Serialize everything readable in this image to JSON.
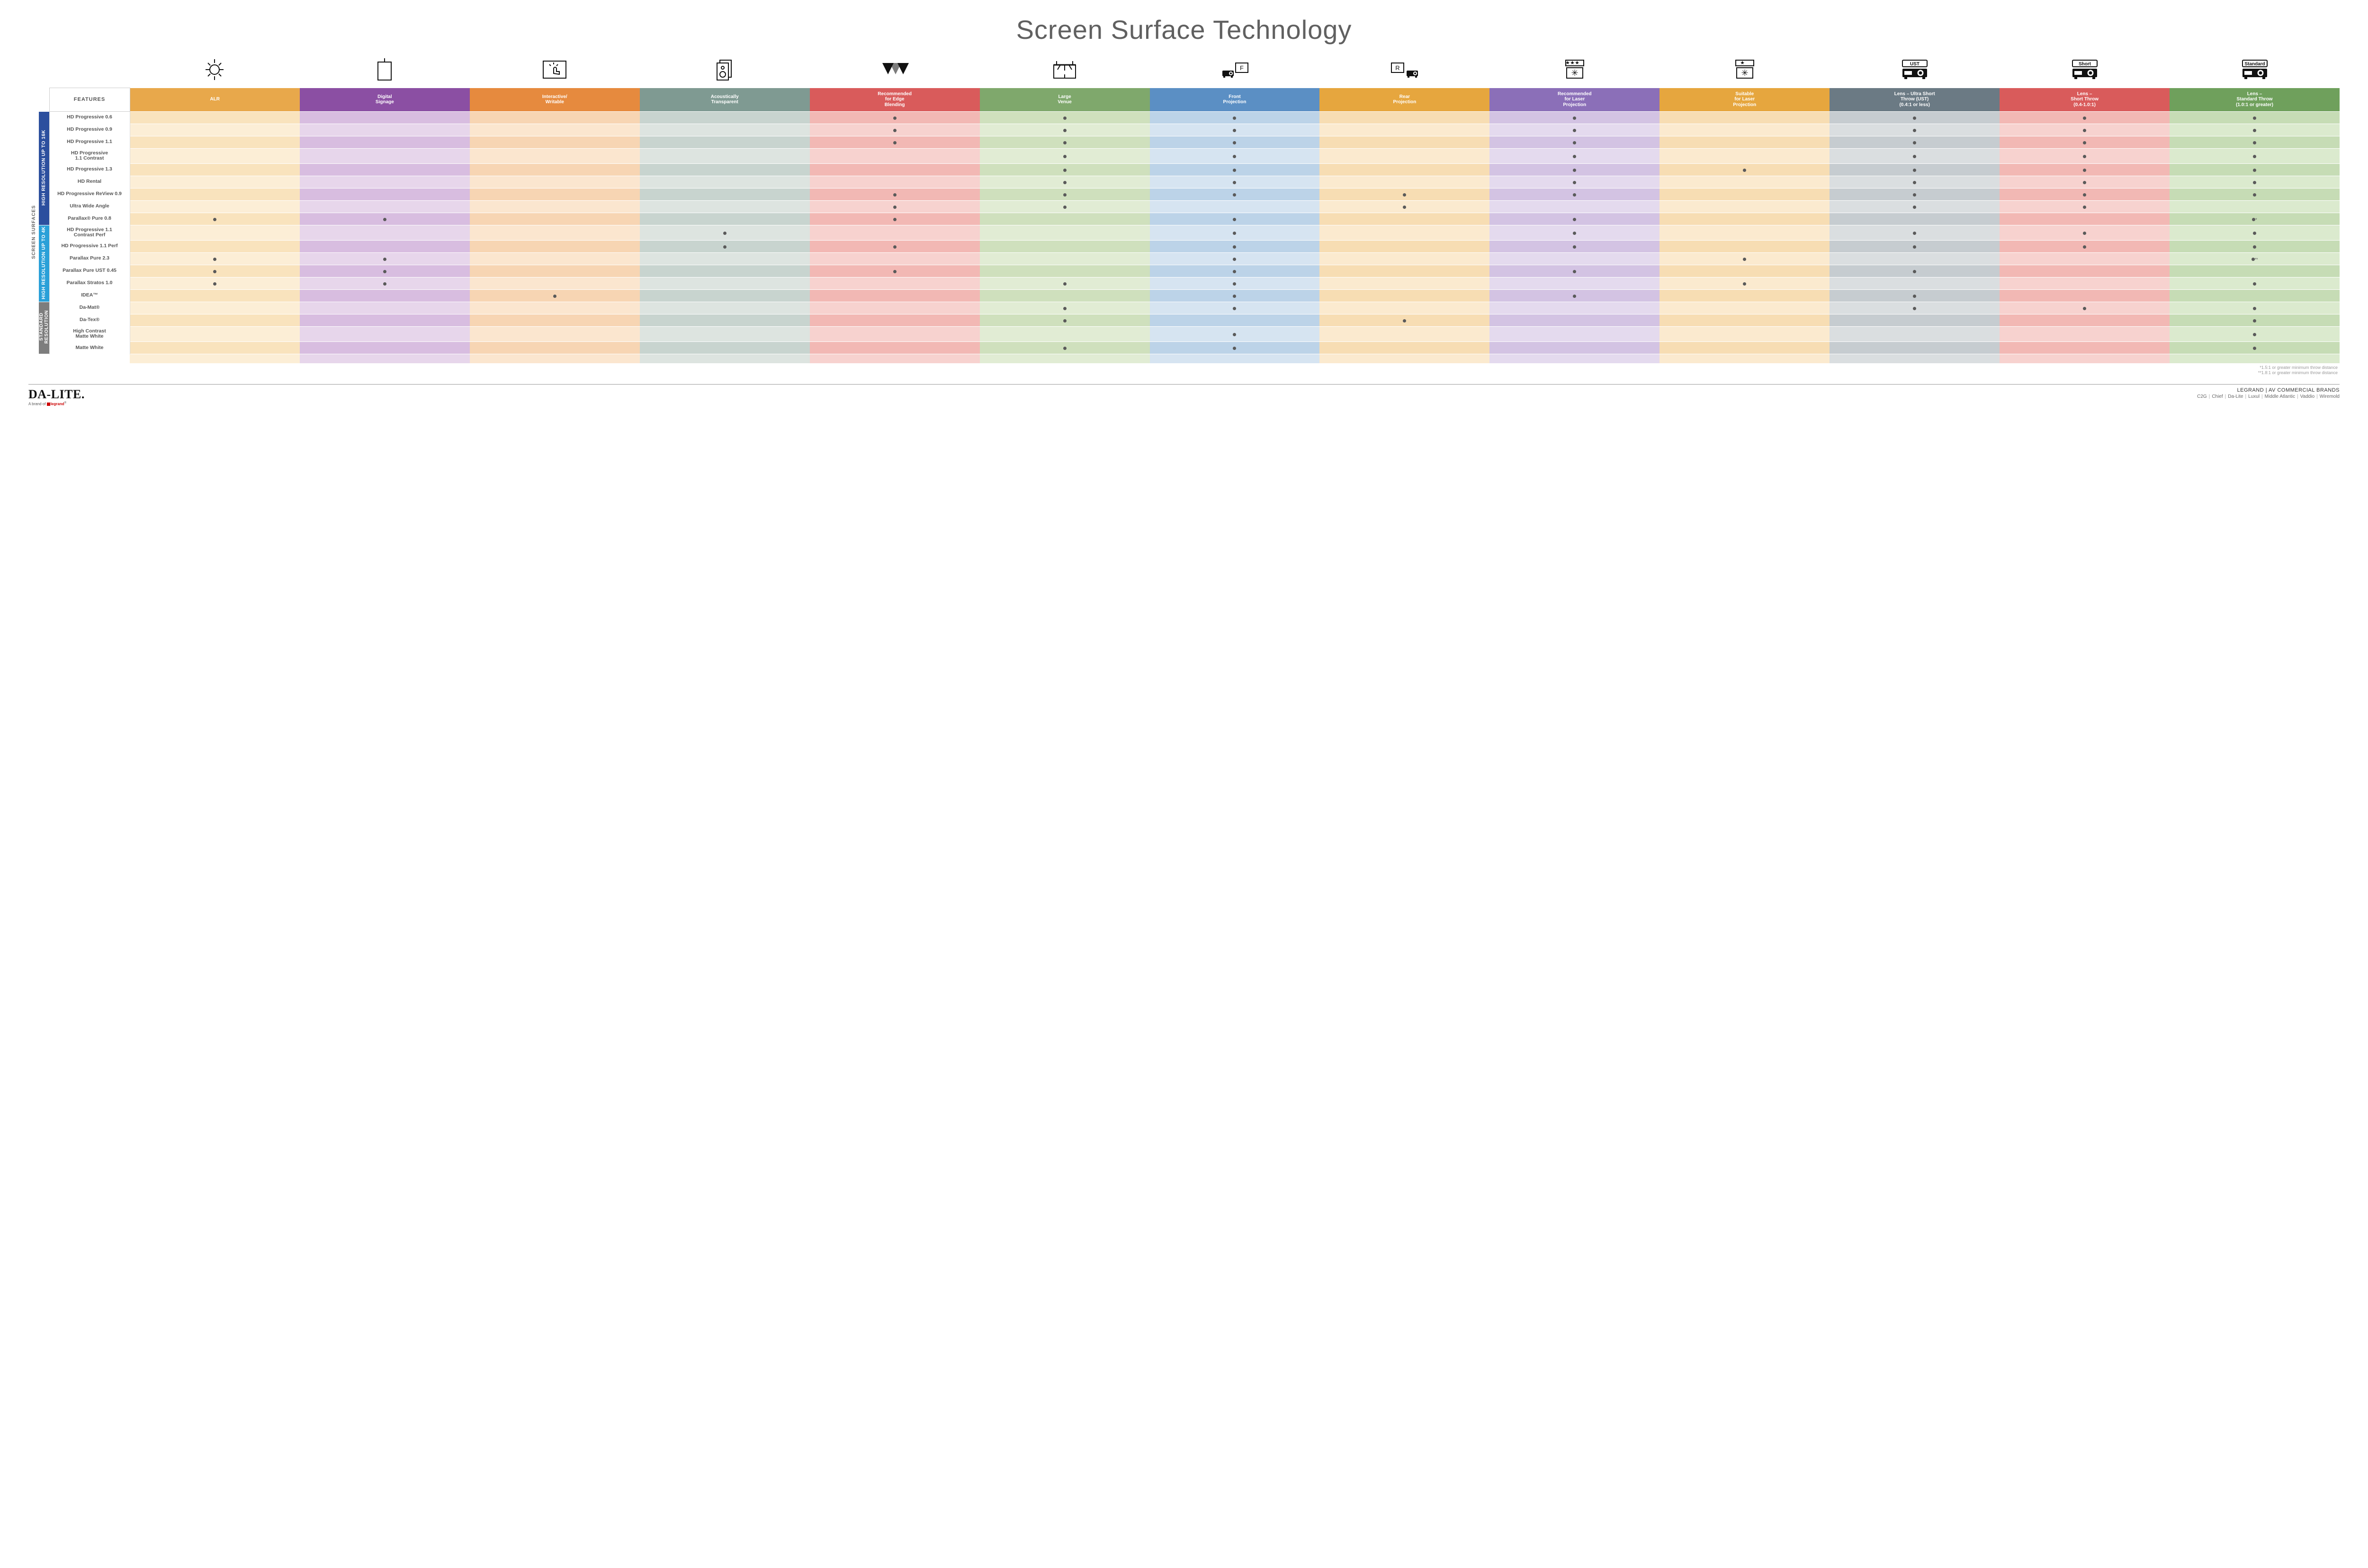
{
  "title": "Screen Surface Technology",
  "features_header": "FEATURES",
  "outer_group_label": "SCREEN SURFACES",
  "colors": {
    "header_bg": [
      "#e8a84b",
      "#8b4fa3",
      "#e68a3e",
      "#7f9a92",
      "#d95b5b",
      "#7fa86c",
      "#5b8fc4",
      "#e6a63e",
      "#8b6fb8",
      "#e6a63e",
      "#6b7a84",
      "#d95b5b",
      "#6fa05c"
    ],
    "tint_even": [
      "#f9e3bd",
      "#d8bde0",
      "#f7d5b3",
      "#c8d4cf",
      "#f2b8b4",
      "#cfe0bd",
      "#bcd3e8",
      "#f7ddb3",
      "#d3c3e3",
      "#f7ddb3",
      "#c6ccd0",
      "#f2b8b4",
      "#c6dcb5"
    ],
    "tint_odd": [
      "#fceed6",
      "#e7d6eb",
      "#fbe6cf",
      "#dde4e0",
      "#f7d2cf",
      "#e1ecd4",
      "#d6e4f1",
      "#fbeacf",
      "#e4daee",
      "#fbeacf",
      "#dadee0",
      "#f7d2cf",
      "#dbeace"
    ],
    "group_bg": [
      "#2c4f9e",
      "#2aa0d8",
      "#7d7d7d"
    ]
  },
  "columns": [
    {
      "label": "ALR",
      "icon": "bulb"
    },
    {
      "label": "Digital\nSignage",
      "icon": "signage"
    },
    {
      "label": "Interactive/\nWritable",
      "icon": "touch"
    },
    {
      "label": "Acoustically\nTransparent",
      "icon": "speaker"
    },
    {
      "label": "Recommended\nfor Edge\nBlending",
      "icon": "edge"
    },
    {
      "label": "Large\nVenue",
      "icon": "venue"
    },
    {
      "label": "Front\nProjection",
      "icon": "front"
    },
    {
      "label": "Rear\nProjection",
      "icon": "rear"
    },
    {
      "label": "Recommended\nfor Laser\nProjection",
      "icon": "laser3"
    },
    {
      "label": "Suitable\nfor Laser\nProjection",
      "icon": "laser1"
    },
    {
      "label": "Lens – Ultra Short\nThrow (UST)\n(0.4:1 or less)",
      "icon": "proj",
      "badge": "UST"
    },
    {
      "label": "Lens –\nShort Throw\n(0.4-1.0:1)",
      "icon": "proj",
      "badge": "Short"
    },
    {
      "label": "Lens –\nStandard Throw\n(1.0:1 or greater)",
      "icon": "proj",
      "badge": "Standard"
    }
  ],
  "groups": [
    {
      "label": "HIGH RESOLUTION UP TO 16K",
      "rows": [
        {
          "name": "HD Progressive 0.6",
          "dots": [
            0,
            0,
            0,
            0,
            1,
            1,
            1,
            0,
            1,
            0,
            1,
            1,
            1
          ]
        },
        {
          "name": "HD Progressive 0.9",
          "dots": [
            0,
            0,
            0,
            0,
            1,
            1,
            1,
            0,
            1,
            0,
            1,
            1,
            1
          ]
        },
        {
          "name": "HD Progressive 1.1",
          "dots": [
            0,
            0,
            0,
            0,
            1,
            1,
            1,
            0,
            1,
            0,
            1,
            1,
            1
          ]
        },
        {
          "name": "HD Progressive\n1.1 Contrast",
          "dots": [
            0,
            0,
            0,
            0,
            0,
            1,
            1,
            0,
            1,
            0,
            1,
            1,
            1
          ]
        },
        {
          "name": "HD Progressive 1.3",
          "dots": [
            0,
            0,
            0,
            0,
            0,
            1,
            1,
            0,
            1,
            1,
            1,
            1,
            1
          ]
        },
        {
          "name": "HD Rental",
          "dots": [
            0,
            0,
            0,
            0,
            0,
            1,
            1,
            0,
            1,
            0,
            1,
            1,
            1
          ]
        },
        {
          "name": "HD Progressive ReView 0.9",
          "dots": [
            0,
            0,
            0,
            0,
            1,
            1,
            1,
            1,
            1,
            0,
            1,
            1,
            1
          ]
        },
        {
          "name": "Ultra Wide Angle",
          "dots": [
            0,
            0,
            0,
            0,
            1,
            1,
            0,
            1,
            0,
            0,
            1,
            1,
            0
          ]
        },
        {
          "name": "Parallax® Pure 0.8",
          "dots": [
            1,
            1,
            0,
            0,
            1,
            0,
            1,
            0,
            1,
            0,
            0,
            0,
            "*"
          ]
        }
      ]
    },
    {
      "label": "HIGH RESOLUTION UP TO 4K",
      "rows": [
        {
          "name": "HD Progressive 1.1\nContrast Perf",
          "dots": [
            0,
            0,
            0,
            1,
            0,
            0,
            1,
            0,
            1,
            0,
            1,
            1,
            1
          ]
        },
        {
          "name": "HD Progressive 1.1 Perf",
          "dots": [
            0,
            0,
            0,
            1,
            1,
            0,
            1,
            0,
            1,
            0,
            1,
            1,
            1
          ]
        },
        {
          "name": "Parallax Pure 2.3",
          "dots": [
            1,
            1,
            0,
            0,
            0,
            0,
            1,
            0,
            0,
            1,
            0,
            0,
            "**"
          ]
        },
        {
          "name": "Parallax Pure UST 0.45",
          "dots": [
            1,
            1,
            0,
            0,
            1,
            0,
            1,
            0,
            1,
            0,
            1,
            0,
            0
          ]
        },
        {
          "name": "Parallax Stratos 1.0",
          "dots": [
            1,
            1,
            0,
            0,
            0,
            1,
            1,
            0,
            0,
            1,
            0,
            0,
            1
          ]
        },
        {
          "name": "IDEA™",
          "dots": [
            0,
            0,
            1,
            0,
            0,
            0,
            1,
            0,
            1,
            0,
            1,
            0,
            0
          ]
        }
      ]
    },
    {
      "label": "STANDARD\nRESOLUTION",
      "rows": [
        {
          "name": "Da-Mat®",
          "dots": [
            0,
            0,
            0,
            0,
            0,
            1,
            1,
            0,
            0,
            0,
            1,
            1,
            1
          ]
        },
        {
          "name": "Da-Tex®",
          "dots": [
            0,
            0,
            0,
            0,
            0,
            1,
            0,
            1,
            0,
            0,
            0,
            0,
            1
          ]
        },
        {
          "name": "High Contrast\nMatte White",
          "dots": [
            0,
            0,
            0,
            0,
            0,
            0,
            1,
            0,
            0,
            0,
            0,
            0,
            1
          ]
        },
        {
          "name": "Matte White",
          "dots": [
            0,
            0,
            0,
            0,
            0,
            1,
            1,
            0,
            0,
            0,
            0,
            0,
            1
          ]
        }
      ]
    }
  ],
  "footnotes": [
    "*1.5:1 or greater minimum throw distance",
    "**1.8:1 or greater minimum throw distance"
  ],
  "footer": {
    "logo_main": "DA-LITE.",
    "logo_sub_prefix": "A brand of ",
    "logo_sub_brand": "legrand",
    "brands_title": "LEGRAND | AV COMMERCIAL BRANDS",
    "brands": [
      "C2G",
      "Chief",
      "Da-Lite",
      "Luxul",
      "Middle Atlantic",
      "Vaddio",
      "Wiremold"
    ]
  }
}
